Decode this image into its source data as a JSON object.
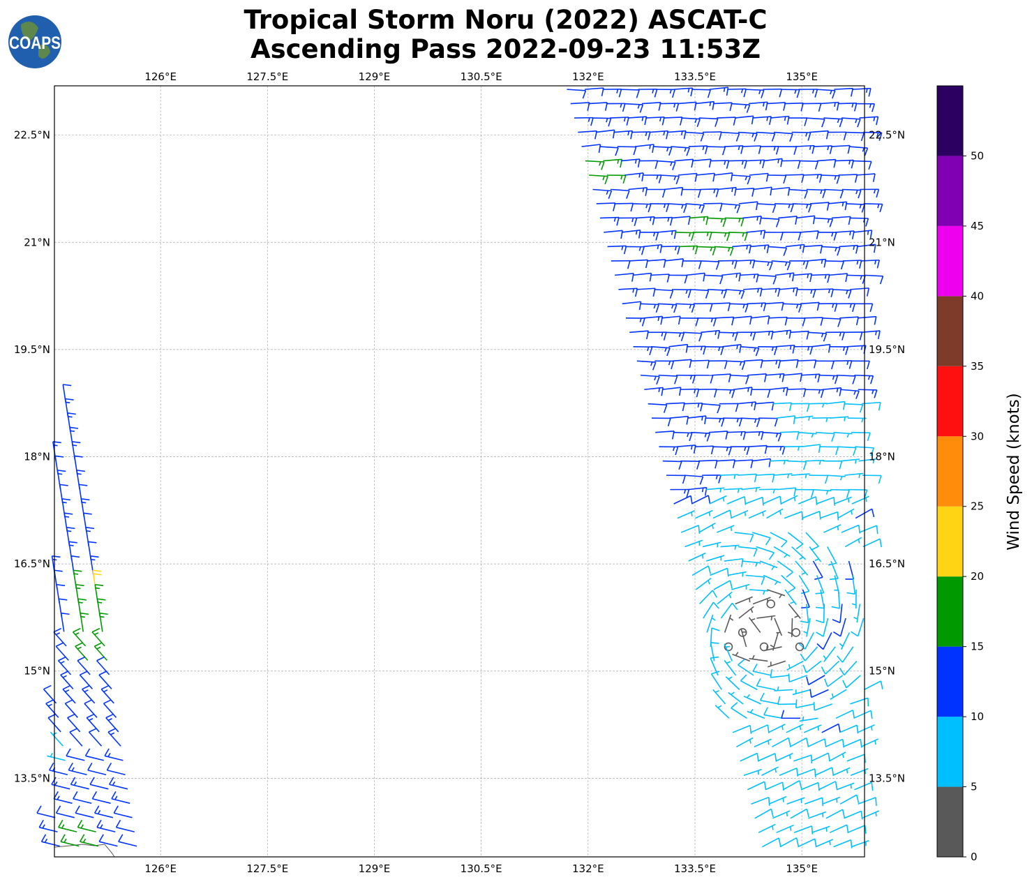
{
  "logo_text": "COAPS",
  "chart_data": {
    "type": "wind-barb-map",
    "title": [
      "Tropical Storm Noru (2022) ASCAT-C",
      "Ascending Pass 2022-09-23 11:53Z"
    ],
    "x_ticks": [
      {
        "value": 126,
        "label": "126°E"
      },
      {
        "value": 127.5,
        "label": "127.5°E"
      },
      {
        "value": 129,
        "label": "129°E"
      },
      {
        "value": 130.5,
        "label": "130.5°E"
      },
      {
        "value": 132,
        "label": "132°E"
      },
      {
        "value": 133.5,
        "label": "133.5°E"
      },
      {
        "value": 135,
        "label": "135°E"
      }
    ],
    "y_ticks": [
      {
        "value": 22.5,
        "label": "22.5°N"
      },
      {
        "value": 21,
        "label": "21°N"
      },
      {
        "value": 19.5,
        "label": "19.5°N"
      },
      {
        "value": 18,
        "label": "18°N"
      },
      {
        "value": 16.5,
        "label": "16.5°N"
      },
      {
        "value": 15,
        "label": "15°N"
      },
      {
        "value": 13.5,
        "label": "13.5°N"
      }
    ],
    "xlim": [
      124.51,
      135.88
    ],
    "ylim": [
      12.4,
      23.19
    ],
    "grid": true,
    "colorbar": {
      "label": "Wind Speed (knots)",
      "ticks": [
        "0",
        "5",
        "10",
        "15",
        "20",
        "25",
        "30",
        "35",
        "40",
        "45",
        "50"
      ],
      "bounds": [
        0,
        5,
        10,
        15,
        20,
        25,
        30,
        35,
        40,
        45,
        50,
        55
      ],
      "colors": [
        "#595959",
        "#00bfff",
        "#0033ff",
        "#009900",
        "#ffd414",
        "#ff8c0a",
        "#ff1010",
        "#7f3b2a",
        "#ee00ee",
        "#8000b4",
        "#2b0060"
      ]
    },
    "swaths": [
      {
        "name": "east",
        "west_edge": [
          [
            131.64,
            23.19
          ],
          [
            134.43,
            12.4
          ]
        ],
        "east_edge": 135.88,
        "storm_center": [
          134.45,
          15.6
        ]
      },
      {
        "name": "west",
        "east_edge": [
          [
            124.7,
            18.75
          ],
          [
            125.72,
            12.4
          ]
        ],
        "west_edge": 124.51
      }
    ]
  }
}
